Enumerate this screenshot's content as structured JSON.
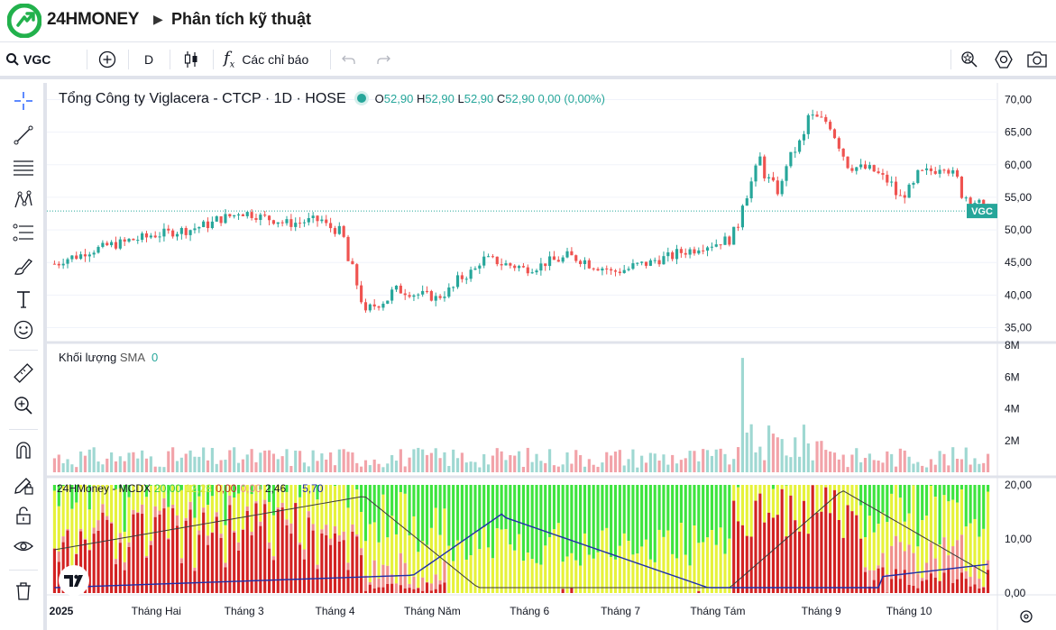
{
  "header": {
    "brand": "24HMONEY",
    "separator": "▶",
    "page_title": "Phân tích kỹ thuật"
  },
  "toolbar": {
    "symbol": "VGC",
    "interval": "D",
    "indicators_label": "Các chỉ báo"
  },
  "chart_header": {
    "title": "Tổng Công ty Viglacera - CTCP · 1D · HOSE",
    "ohlc": {
      "o": "52,90",
      "h": "52,90",
      "l": "52,90",
      "c": "52,90",
      "change": "0,00 (0,00%)"
    },
    "o_label": "O",
    "h_label": "H",
    "l_label": "L",
    "c_label": "C"
  },
  "volume_legend": {
    "label": "Khối lượng",
    "sma_label": "SMA",
    "sma_value": "0"
  },
  "mcdx_legend": {
    "name": "24HMoney - MCDX",
    "v1": "20,00",
    "v2": "12,28",
    "v3": "0,00",
    "v4": "0,00",
    "v5": "2,46",
    "v6": "5,70"
  },
  "price_axis": {
    "ticks": [
      "70,00",
      "65,00",
      "60,00",
      "55,00",
      "50,00",
      "45,00",
      "40,00",
      "35,00"
    ],
    "last_label": "VGC"
  },
  "volume_axis": {
    "ticks": [
      "8M",
      "6M",
      "4M",
      "2M"
    ]
  },
  "mcdx_axis": {
    "ticks": [
      "20,00",
      "10,00",
      "0,00"
    ]
  },
  "time_axis": {
    "labels": [
      "2025",
      "Tháng Hai",
      "Tháng 3",
      "Tháng 4",
      "Tháng Năm",
      "Tháng 6",
      "Tháng 7",
      "Tháng Tám",
      "Tháng 9",
      "Tháng 10"
    ]
  },
  "colors": {
    "up": "#26a69a",
    "down": "#ef5350",
    "vol_up": "#9fd8d2",
    "vol_down": "#f2a3a9",
    "mcdx_green": "#3ee43e",
    "mcdx_yellow": "#e6f23a",
    "mcdx_red": "#d32222",
    "mcdx_pink": "#f0908c",
    "line_blue": "#1f2fa8"
  },
  "chart_data": {
    "type": "candlestick",
    "symbol": "VGC",
    "interval": "1D",
    "ylim": [
      33,
      72
    ],
    "price_anchors": [
      [
        "2025-01-02",
        44.8
      ],
      [
        "2025-01-15",
        47.0
      ],
      [
        "2025-02-03",
        49.2
      ],
      [
        "2025-02-17",
        50.3
      ],
      [
        "2025-03-03",
        52.8
      ],
      [
        "2025-03-18",
        51.0
      ],
      [
        "2025-03-28",
        51.5
      ],
      [
        "2025-04-03",
        49.8
      ],
      [
        "2025-04-08",
        44.0
      ],
      [
        "2025-04-11",
        37.0
      ],
      [
        "2025-04-22",
        40.8
      ],
      [
        "2025-05-05",
        39.5
      ],
      [
        "2025-05-20",
        45.5
      ],
      [
        "2025-06-02",
        44.0
      ],
      [
        "2025-06-16",
        46.0
      ],
      [
        "2025-06-30",
        43.5
      ],
      [
        "2025-07-15",
        45.5
      ],
      [
        "2025-07-28",
        47.5
      ],
      [
        "2025-08-06",
        48.5
      ],
      [
        "2025-08-12",
        55.5
      ],
      [
        "2025-08-15",
        61.0
      ],
      [
        "2025-08-21",
        56.0
      ],
      [
        "2025-09-01",
        67.5
      ],
      [
        "2025-09-08",
        66.0
      ],
      [
        "2025-09-12",
        60.0
      ],
      [
        "2025-09-22",
        59.0
      ],
      [
        "2025-09-30",
        55.0
      ],
      [
        "2025-10-06",
        58.5
      ],
      [
        "2025-10-14",
        60.0
      ],
      [
        "2025-10-20",
        55.5
      ],
      [
        "2025-10-27",
        52.9
      ]
    ],
    "last_close": 52.9,
    "volume_ylim": [
      0,
      8000000
    ],
    "mcdx_ylim": [
      0,
      20
    ],
    "mcdx_last": {
      "banker": 2.46,
      "line": 5.7
    }
  }
}
